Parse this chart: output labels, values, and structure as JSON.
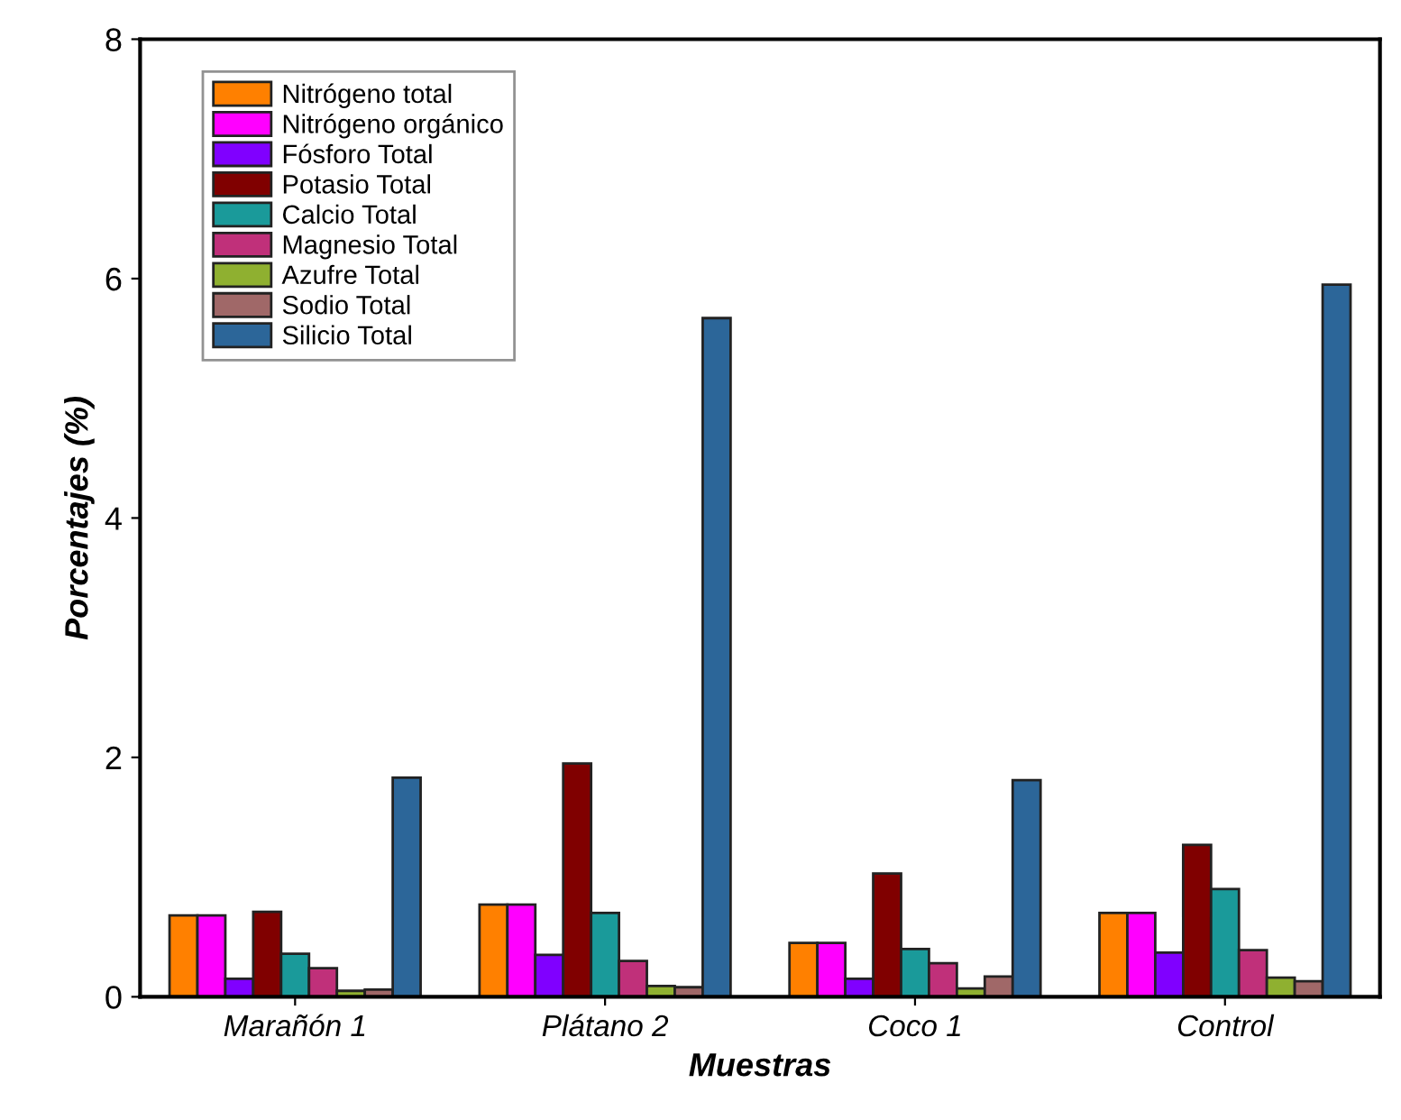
{
  "chart_data": {
    "type": "bar",
    "xlabel": "Muestras",
    "ylabel": "Porcentajes (%)",
    "categories": [
      "Marañón 1",
      "Plátano 2",
      "Coco 1",
      "Control"
    ],
    "series": [
      {
        "name": "Nitrógeno total",
        "color": "#ff8000",
        "values": [
          0.68,
          0.77,
          0.45,
          0.7
        ]
      },
      {
        "name": "Nitrógeno orgánico",
        "color": "#ff00ff",
        "values": [
          0.68,
          0.77,
          0.45,
          0.7
        ]
      },
      {
        "name": "Fósforo Total",
        "color": "#8000ff",
        "values": [
          0.15,
          0.35,
          0.15,
          0.37
        ]
      },
      {
        "name": "Potasio Total",
        "color": "#800000",
        "values": [
          0.71,
          1.95,
          1.03,
          1.27
        ]
      },
      {
        "name": "Calcio Total",
        "color": "#1a9a9a",
        "values": [
          0.36,
          0.7,
          0.4,
          0.9
        ]
      },
      {
        "name": "Magnesio Total",
        "color": "#c0307a",
        "values": [
          0.24,
          0.3,
          0.28,
          0.39
        ]
      },
      {
        "name": "Azufre Total",
        "color": "#8fb030",
        "values": [
          0.05,
          0.09,
          0.07,
          0.16
        ]
      },
      {
        "name": "Sodio Total",
        "color": "#a06868",
        "values": [
          0.06,
          0.08,
          0.17,
          0.13
        ]
      },
      {
        "name": "Silicio Total",
        "color": "#2c6699",
        "values": [
          1.83,
          5.67,
          1.81,
          5.95
        ]
      }
    ],
    "ylim": [
      0,
      8
    ],
    "yticks": [
      0,
      2,
      4,
      6,
      8
    ],
    "grid": false,
    "legend": "top left"
  }
}
